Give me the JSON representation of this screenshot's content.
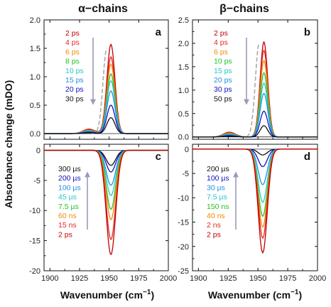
{
  "chart_data": {
    "type": "line",
    "column_titles": [
      "α−chains",
      "β−chains"
    ],
    "ylabel": "Absorbance change (mDO)",
    "xlabel_left": "Wavenumber (cm",
    "xlabel_right": "Wavenumber (cm",
    "xlabel_sup": "−1",
    "xlabel_close": ")",
    "xlim": [
      1895,
      2000
    ],
    "xticks": [
      "1900",
      "1925",
      "1950",
      "1975",
      "2000"
    ],
    "panels": [
      {
        "id": "a",
        "letter": "a",
        "col": 0,
        "row": 0,
        "ylim": [
          -0.1,
          2.0
        ],
        "yticks": [
          "0.0",
          "0.5",
          "1.0",
          "1.5",
          "2.0"
        ],
        "ytick_values": [
          0,
          0.5,
          1.0,
          1.5,
          2.0
        ],
        "peak_center": 1951.5,
        "peak_width": 3.4,
        "shoulder_center": 1933,
        "shoulder_rel": 0.05,
        "dashed_center": 1948,
        "dashed_peak": 1.5,
        "arrow_direction": "down",
        "series": [
          {
            "name": "2 ps",
            "color": "#c00000",
            "peak": 1.57
          },
          {
            "name": "4 ps",
            "color": "#e8231c",
            "peak": 1.35
          },
          {
            "name": "6 ps",
            "color": "#f08a00",
            "peak": 1.22
          },
          {
            "name": "8 ps",
            "color": "#22c322",
            "peak": 1.05
          },
          {
            "name": "10 ps",
            "color": "#22c8c8",
            "peak": 0.93
          },
          {
            "name": "15 ps",
            "color": "#1e90e0",
            "peak": 0.75
          },
          {
            "name": "20 ps",
            "color": "#1010c0",
            "peak": 0.5
          },
          {
            "name": "30 ps",
            "color": "#111111",
            "peak": 0.28
          }
        ]
      },
      {
        "id": "b",
        "letter": "b",
        "col": 1,
        "row": 0,
        "ylim": [
          -0.05,
          2.5
        ],
        "yticks": [
          "0.0",
          "0.5",
          "1.0",
          "1.5",
          "2.0",
          "2.5"
        ],
        "ytick_values": [
          0,
          0.5,
          1.0,
          1.5,
          2.0,
          2.5
        ],
        "peak_center": 1955,
        "peak_width": 3.2,
        "shoulder_center": 1926,
        "shoulder_rel": 0.05,
        "dashed_center": 1951,
        "dashed_peak": 2.0,
        "arrow_direction": "down",
        "series": [
          {
            "name": "2 ps",
            "color": "#c00000",
            "peak": 2.03
          },
          {
            "name": "4 ps",
            "color": "#e8231c",
            "peak": 1.85
          },
          {
            "name": "6 ps",
            "color": "#f08a00",
            "peak": 1.63
          },
          {
            "name": "10 ps",
            "color": "#22c322",
            "peak": 1.37
          },
          {
            "name": "15 ps",
            "color": "#22c8c8",
            "peak": 1.15
          },
          {
            "name": "20 ps",
            "color": "#1e90e0",
            "peak": 0.93
          },
          {
            "name": "30 ps",
            "color": "#1010c0",
            "peak": 0.55
          },
          {
            "name": "50 ps",
            "color": "#111111",
            "peak": 0.24
          }
        ]
      },
      {
        "id": "c",
        "letter": "c",
        "col": 0,
        "row": 1,
        "ylim": [
          -20,
          1
        ],
        "yticks": [
          "-20",
          "-15",
          "-10",
          "-5",
          "0"
        ],
        "ytick_values": [
          -20,
          -15,
          -10,
          -5,
          0
        ],
        "peak_center": 1951.5,
        "peak_width": 4.0,
        "arrow_direction": "up",
        "series": [
          {
            "name": "300 µs",
            "color": "#111111",
            "peak": -2.5
          },
          {
            "name": "200 µs",
            "color": "#1010c0",
            "peak": -3.6
          },
          {
            "name": "100 µs",
            "color": "#1e90e0",
            "peak": -5.8
          },
          {
            "name": "45 µs",
            "color": "#22c8c8",
            "peak": -7.5
          },
          {
            "name": "7.5 µs",
            "color": "#22c322",
            "peak": -9.8
          },
          {
            "name": "60 ns",
            "color": "#f08a00",
            "peak": -11.5
          },
          {
            "name": "15 ns",
            "color": "#e8231c",
            "peak": -14.8
          },
          {
            "name": "2 ps",
            "color": "#c00000",
            "peak": -17.3
          }
        ]
      },
      {
        "id": "d",
        "letter": "d",
        "col": 1,
        "row": 1,
        "ylim": [
          -25,
          1
        ],
        "yticks": [
          "-25",
          "-20",
          "-15",
          "-10",
          "-5",
          "0"
        ],
        "ytick_values": [
          -25,
          -20,
          -15,
          -10,
          -5,
          0
        ],
        "peak_center": 1954,
        "peak_width": 3.8,
        "arrow_direction": "up",
        "series": [
          {
            "name": "200 µs",
            "color": "#111111",
            "peak": -1.2
          },
          {
            "name": "100 µs",
            "color": "#1010c0",
            "peak": -3.6
          },
          {
            "name": "30 µs",
            "color": "#1e90e0",
            "peak": -7.3
          },
          {
            "name": "7.5 µs",
            "color": "#22c8c8",
            "peak": -10.9
          },
          {
            "name": "150 ns",
            "color": "#22c322",
            "peak": -13.8
          },
          {
            "name": "40 ns",
            "color": "#f08a00",
            "peak": -16.0
          },
          {
            "name": "2 ns",
            "color": "#e8231c",
            "peak": -18.3
          },
          {
            "name": "2 ps",
            "color": "#c00000",
            "peak": -21.3
          }
        ]
      }
    ],
    "colors": {
      "arrow": "#9a9abe",
      "dashed": "#aaaaaa",
      "zero_line": "#222222",
      "axis": "#111111"
    }
  }
}
